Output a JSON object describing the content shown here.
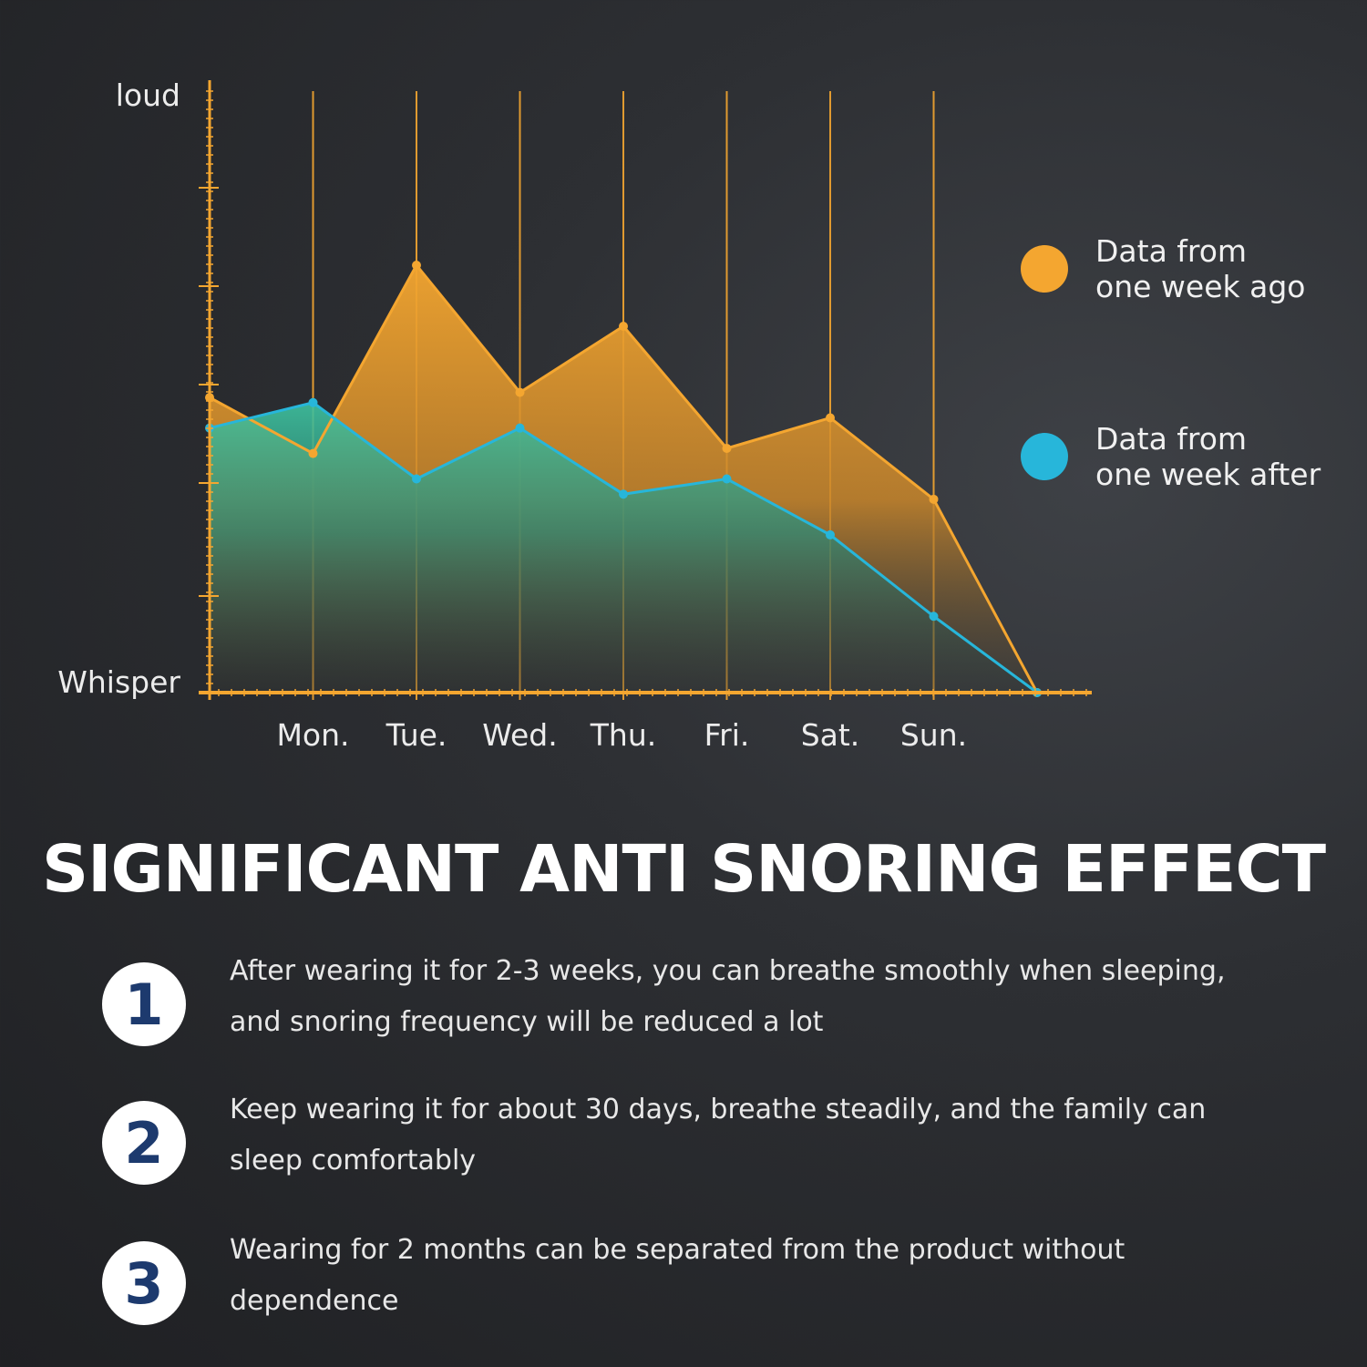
{
  "chart_data": {
    "type": "area",
    "categories": [
      "",
      "Mon.",
      "Tue.",
      "Wed.",
      "Thu.",
      "Fri.",
      "Sat.",
      "Sun.",
      ""
    ],
    "y_axis": {
      "top_label": "loud",
      "bottom_label": "Whisper",
      "range": [
        0,
        6
      ]
    },
    "series": [
      {
        "name": "Data from one week ago",
        "color": "#f4a630",
        "values": [
          2.9,
          2.35,
          4.2,
          2.95,
          3.6,
          2.4,
          2.7,
          1.9,
          0
        ]
      },
      {
        "name": "Data from one week after",
        "color": "#27b6da",
        "values": [
          2.6,
          2.85,
          2.1,
          2.6,
          1.95,
          2.1,
          1.55,
          0.75,
          0
        ]
      }
    ],
    "legend_placement": "right",
    "grid": "vertical lines at each category"
  },
  "legend": {
    "items": [
      {
        "line1": "Data from",
        "line2": "one week ago",
        "color": "#f4a630"
      },
      {
        "line1": "Data from",
        "line2": "one week after",
        "color": "#27b6da"
      }
    ]
  },
  "headline": "SIGNIFICANT ANTI SNORING EFFECT",
  "steps": [
    {
      "number": "1",
      "text": "After wearing it for 2-3 weeks, you can breathe smoothly when sleeping, and snoring frequency will be reduced a lot"
    },
    {
      "number": "2",
      "text": "Keep wearing it for about 30 days, breathe steadily, and the family can sleep comfortably"
    },
    {
      "number": "3",
      "text": "Wearing for 2 months can be separated from the product without dependence"
    }
  ]
}
